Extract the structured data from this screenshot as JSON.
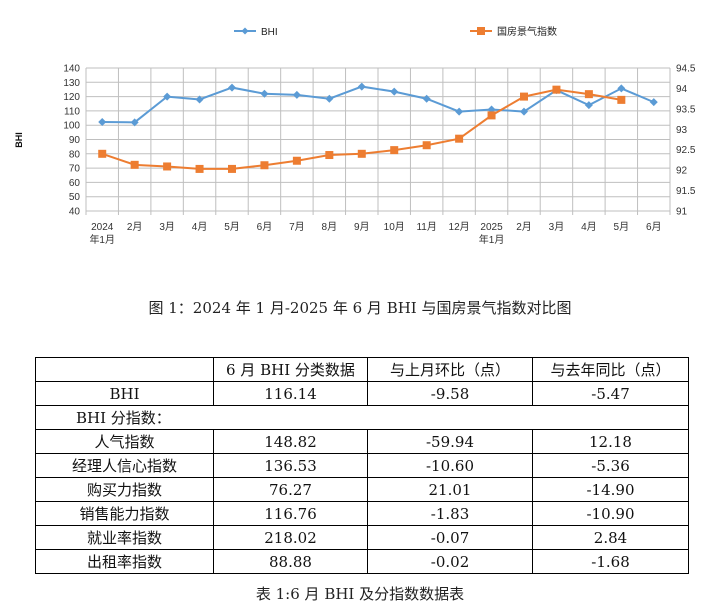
{
  "chart_data": {
    "type": "line",
    "categories": [
      [
        "2024",
        "年1月"
      ],
      [
        "2月"
      ],
      [
        "3月"
      ],
      [
        "4月"
      ],
      [
        "5月"
      ],
      [
        "6月"
      ],
      [
        "7月"
      ],
      [
        "8月"
      ],
      [
        "9月"
      ],
      [
        "10月"
      ],
      [
        "11月"
      ],
      [
        "12月"
      ],
      [
        "2025",
        "年1月"
      ],
      [
        "2月"
      ],
      [
        "3月"
      ],
      [
        "4月"
      ],
      [
        "5月"
      ],
      [
        "6月"
      ]
    ],
    "ylabel": "BHI",
    "ylim": [
      40,
      140
    ],
    "yticks": [
      40,
      50,
      60,
      70,
      80,
      90,
      100,
      110,
      120,
      130,
      140
    ],
    "y2lim": [
      91,
      94.5
    ],
    "y2ticks": [
      "91",
      "91.5",
      "92",
      "92.5",
      "93",
      "93.5",
      "94",
      "94.5"
    ],
    "grid": true,
    "legend_position": "top",
    "series": [
      {
        "name": "BHI",
        "axis": "left",
        "color": "#5b9bd5",
        "marker": "diamond",
        "values": [
          102.2,
          102,
          120,
          118,
          126.3,
          122,
          121.2,
          118.5,
          127,
          123.5,
          118.5,
          109.5,
          111,
          109.5,
          124.5,
          114,
          125.72,
          116.14
        ]
      },
      {
        "name": "国房景气指数",
        "axis": "right",
        "color": "#ed7d31",
        "marker": "square",
        "values": [
          92.4,
          92.13,
          92.09,
          92.03,
          92.03,
          92.12,
          92.23,
          92.37,
          92.4,
          92.49,
          92.61,
          92.77,
          93.34,
          93.8,
          93.97,
          93.86,
          93.72,
          null
        ]
      }
    ]
  },
  "figure_caption": "图 1：2024 年 1 月-2025 年 6 月 BHI 与国房景气指数对比图",
  "table": {
    "headers": [
      "",
      "6 月 BHI 分类数据",
      "与上月环比（点）",
      "与去年同比（点）"
    ],
    "rows": [
      {
        "label": "BHI",
        "values": [
          "116.14",
          "-9.58",
          "-5.47"
        ]
      },
      {
        "label": "BHI 分指数：",
        "section": true,
        "values": []
      },
      {
        "label": "人气指数",
        "values": [
          "148.82",
          "-59.94",
          "12.18"
        ]
      },
      {
        "label": "经理人信心指数",
        "values": [
          "136.53",
          "-10.60",
          "-5.36"
        ]
      },
      {
        "label": "购买力指数",
        "values": [
          "76.27",
          "21.01",
          "-14.90"
        ]
      },
      {
        "label": "销售能力指数",
        "values": [
          "116.76",
          "-1.83",
          "-10.90"
        ]
      },
      {
        "label": "就业率指数",
        "values": [
          "218.02",
          "-0.07",
          "2.84"
        ]
      },
      {
        "label": "出租率指数",
        "values": [
          "88.88",
          "-0.02",
          "-1.68"
        ]
      }
    ],
    "caption": "表 1:6 月 BHI 及分指数数据表"
  }
}
